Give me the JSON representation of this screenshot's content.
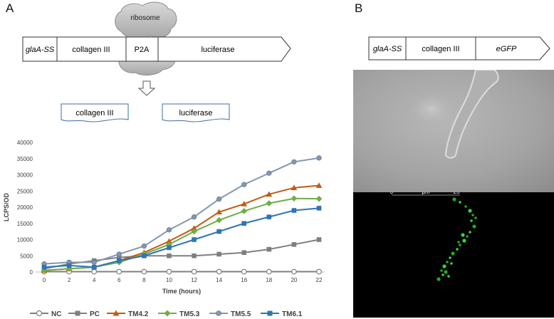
{
  "panel_a": {
    "letter": "A",
    "construct": {
      "segments": [
        "glaA-SS",
        "collagen III",
        "P2A",
        "luciferase"
      ],
      "ribosome_label": "ribosome"
    },
    "products": [
      "collagen III",
      "luciferase"
    ]
  },
  "panel_b": {
    "letter": "B",
    "construct": {
      "segments": [
        "glaA-SS",
        "collagen III",
        "eGFP"
      ]
    },
    "scale_bar": {
      "start": "0",
      "unit": "µm",
      "end": "25"
    }
  },
  "chart_data": {
    "type": "line",
    "xlabel": "Time (hours)",
    "ylabel": "LCPS/OD",
    "x": [
      0,
      2,
      4,
      6,
      8,
      10,
      12,
      14,
      16,
      18,
      20,
      22
    ],
    "ylim": [
      0,
      40000
    ],
    "yticks": [
      0,
      5000,
      10000,
      15000,
      20000,
      25000,
      30000,
      35000,
      40000
    ],
    "grid": false,
    "legend": "bottom",
    "series": [
      {
        "name": "NC",
        "color": "#7f7f7f",
        "marker": "circle-open",
        "values": [
          100,
          100,
          100,
          100,
          100,
          100,
          100,
          100,
          100,
          100,
          100,
          100
        ]
      },
      {
        "name": "PC",
        "color": "#7f7f7f",
        "marker": "square",
        "values": [
          1000,
          2500,
          3500,
          4500,
          5000,
          5000,
          5000,
          5500,
          6000,
          7000,
          8500,
          10000
        ]
      },
      {
        "name": "TM4.2",
        "color": "#c55a11",
        "marker": "triangle",
        "values": [
          500,
          1000,
          1500,
          3500,
          6000,
          9500,
          13500,
          18500,
          21000,
          24000,
          26000,
          26700
        ]
      },
      {
        "name": "TM5.3",
        "color": "#70ad47",
        "marker": "diamond",
        "values": [
          500,
          1000,
          1500,
          3000,
          5500,
          8500,
          12500,
          16000,
          18800,
          21200,
          22700,
          22600
        ]
      },
      {
        "name": "TM5.5",
        "color": "#8497b0",
        "marker": "circle",
        "values": [
          2500,
          3000,
          3000,
          5500,
          8000,
          13000,
          17000,
          22500,
          27000,
          30500,
          34000,
          35200
        ]
      },
      {
        "name": "TM6.1",
        "color": "#2e75b6",
        "marker": "square",
        "values": [
          1500,
          2000,
          1500,
          3500,
          5000,
          7500,
          10000,
          12500,
          15000,
          17000,
          19000,
          19700
        ]
      }
    ]
  }
}
